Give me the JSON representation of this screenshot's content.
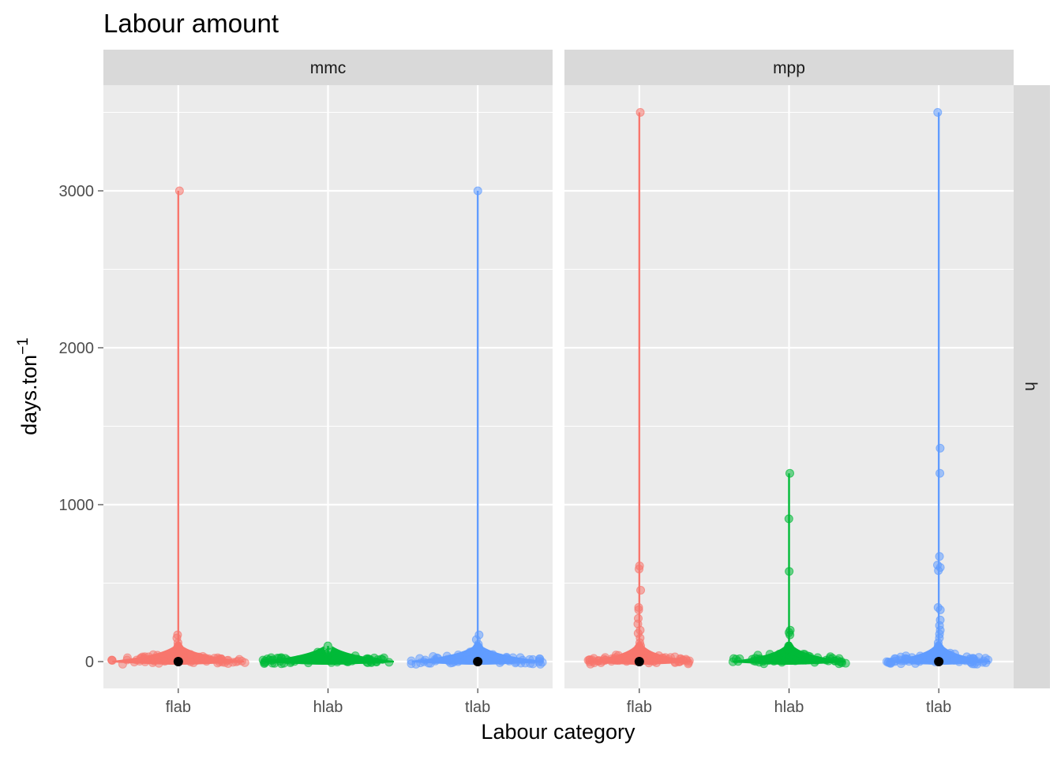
{
  "chart_data": {
    "type": "violin-jitter",
    "title": "Labour amount",
    "xlabel": "Labour category",
    "ylabel": "days.ton",
    "ylabel_superscript": "−1",
    "ylim": [
      -175,
      3670
    ],
    "y_ticks": [
      0,
      1000,
      2000,
      3000
    ],
    "categories": [
      "flab",
      "hlab",
      "tlab"
    ],
    "colors": {
      "flab": "#F8766D",
      "hlab": "#00BA38",
      "tlab": "#619CFF"
    },
    "row_strip": "h",
    "panels": [
      {
        "name": "mmc",
        "groups": [
          {
            "category": "flab",
            "max": 3000,
            "width_scale": 1.0,
            "median": 0,
            "outliers": [
              3000,
              170,
              150,
              120,
              100,
              80,
              60
            ]
          },
          {
            "category": "hlab",
            "max": 100,
            "width_scale": 1.0,
            "median": null,
            "outliers": [
              100,
              60,
              40,
              30
            ]
          },
          {
            "category": "tlab",
            "max": 3000,
            "width_scale": 1.0,
            "median": 0,
            "outliers": [
              3000,
              170,
              140,
              110,
              90,
              70
            ]
          }
        ]
      },
      {
        "name": "mpp",
        "groups": [
          {
            "category": "flab",
            "max": 3500,
            "width_scale": 0.78,
            "median": 0,
            "outliers": [
              3500,
              610,
              590,
              455,
              345,
              330,
              275,
              240,
              200,
              180,
              150,
              120,
              100,
              80
            ]
          },
          {
            "category": "hlab",
            "max": 1200,
            "width_scale": 0.85,
            "median": null,
            "outliers": [
              1200,
              910,
              575,
              200,
              185,
              170,
              100,
              80
            ]
          },
          {
            "category": "tlab",
            "max": 3500,
            "width_scale": 0.78,
            "median": 0,
            "outliers": [
              3500,
              1360,
              1200,
              670,
              615,
              600,
              580,
              345,
              330,
              265,
              230,
              200,
              175,
              150,
              120,
              100
            ]
          }
        ]
      }
    ]
  }
}
